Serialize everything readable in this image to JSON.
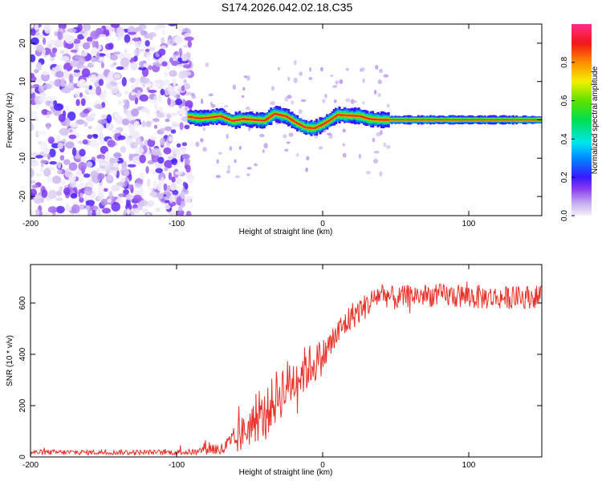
{
  "title": "S174.2026.042.02.18.C35",
  "chart_data": [
    {
      "type": "heatmap",
      "name": "spectrogram",
      "xlabel": "Height of straight line (km)",
      "ylabel": "Frequency (Hz)",
      "xlim": [
        -200,
        150
      ],
      "ylim": [
        -25,
        25
      ],
      "xticks": [
        -200,
        -100,
        0,
        100
      ],
      "yticks": [
        -20,
        -10,
        0,
        10,
        20
      ],
      "noise_region_x": [
        -200,
        -90
      ],
      "signal_ridge": {
        "x": [
          -92,
          -85,
          -78,
          -70,
          -62,
          -55,
          -48,
          -40,
          -33,
          -25,
          -18,
          -12,
          -6,
          0,
          5,
          10,
          18,
          25,
          32,
          40,
          50,
          150
        ],
        "freq": [
          0.8,
          0.4,
          0.6,
          1.0,
          -0.3,
          0.2,
          0.0,
          -0.2,
          1.6,
          0.9,
          -0.8,
          -2.0,
          -2.2,
          -1.2,
          0.0,
          1.3,
          1.1,
          1.0,
          0.2,
          0.0,
          0.0,
          0.0
        ]
      },
      "colorbar": {
        "label": "Normalized spectral amplitude",
        "range": [
          0.0,
          1.0
        ],
        "ticks": [
          0.0,
          0.2,
          0.4,
          0.6,
          0.8
        ]
      }
    },
    {
      "type": "line",
      "name": "snr",
      "xlabel": "Height of straight line (km)",
      "ylabel": "SNR (10 * v/v)",
      "xlim": [
        -200,
        150
      ],
      "ylim": [
        0,
        750
      ],
      "xticks": [
        -200,
        -100,
        0,
        100
      ],
      "yticks": [
        0,
        200,
        400,
        600
      ],
      "series": [
        {
          "name": "SNR",
          "color": "#e8312a",
          "x": [
            -200,
            -100,
            -85,
            -80,
            -70,
            -60,
            -50,
            -40,
            -30,
            -20,
            -10,
            0,
            10,
            20,
            30,
            40,
            50,
            60,
            80,
            100,
            120,
            150
          ],
          "mean": [
            18,
            18,
            20,
            40,
            25,
            60,
            120,
            160,
            250,
            300,
            350,
            390,
            480,
            550,
            590,
            640,
            615,
            630,
            630,
            625,
            620,
            625
          ],
          "noise_amp": [
            10,
            10,
            12,
            30,
            25,
            60,
            80,
            90,
            110,
            100,
            90,
            70,
            60,
            55,
            50,
            50,
            45,
            45,
            45,
            50,
            45,
            45
          ]
        }
      ]
    }
  ]
}
